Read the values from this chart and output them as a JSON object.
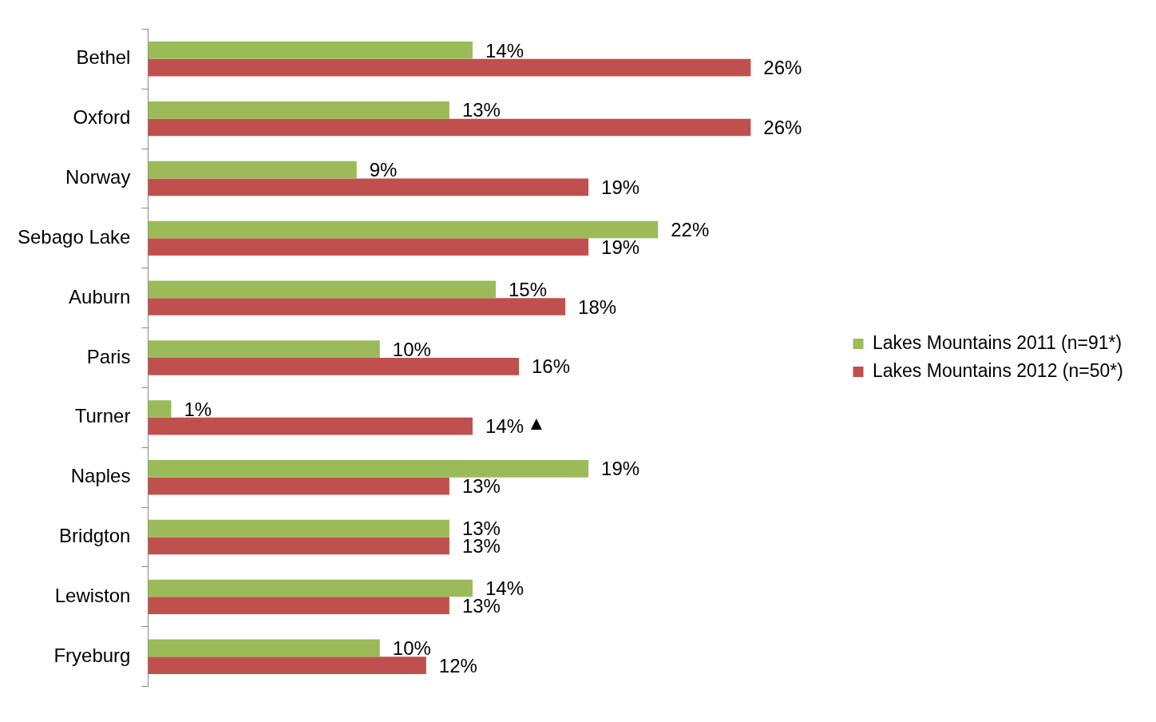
{
  "chart_data": {
    "type": "bar",
    "orientation": "horizontal",
    "categories": [
      "Bethel",
      "Oxford",
      "Norway",
      "Sebago Lake",
      "Auburn",
      "Paris",
      "Turner",
      "Naples",
      "Bridgton",
      "Lewiston",
      "Fryeburg"
    ],
    "series": [
      {
        "name": "Lakes Mountains 2011 (n=91*)",
        "color": "#9bbb59",
        "values": [
          14,
          13,
          9,
          22,
          15,
          10,
          1,
          19,
          13,
          14,
          10
        ],
        "value_labels": [
          "14%",
          "13%",
          "9%",
          "22%",
          "15%",
          "10%",
          "1%",
          "19%",
          "13%",
          "14%",
          "10%"
        ]
      },
      {
        "name": "Lakes Mountains 2012 (n=50*)",
        "color": "#c0504d",
        "values": [
          26,
          26,
          19,
          19,
          18,
          16,
          14,
          13,
          13,
          13,
          12
        ],
        "value_labels": [
          "26%",
          "26%",
          "19%",
          "19%",
          "18%",
          "16%",
          "14%",
          "13%",
          "13%",
          "13%",
          "12%"
        ]
      }
    ],
    "annotations": [
      {
        "text": "▲",
        "x": 14,
        "y": "Turner"
      }
    ],
    "grid": false,
    "legend": "right"
  }
}
